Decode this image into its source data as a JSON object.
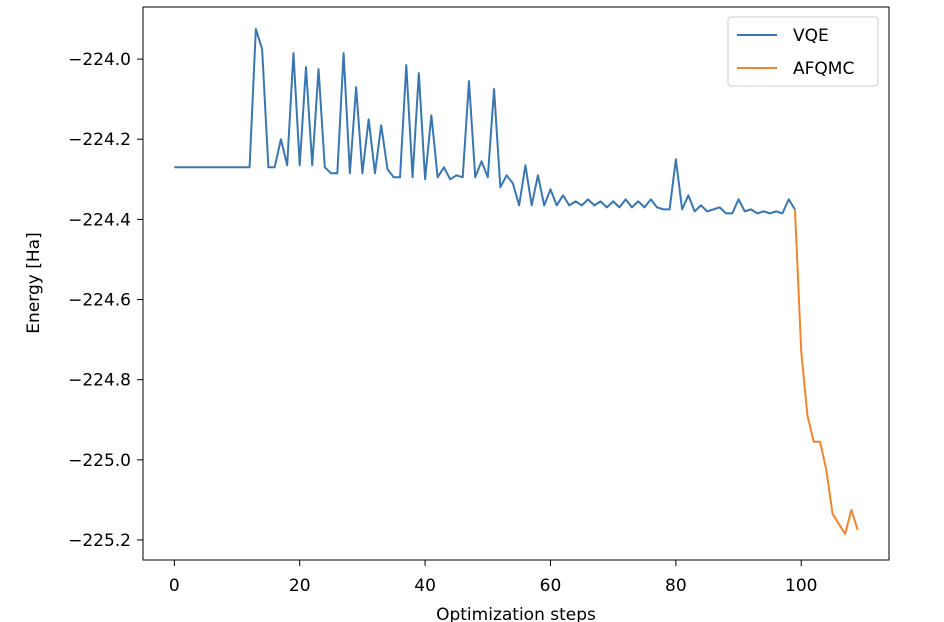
{
  "chart_data": {
    "type": "line",
    "xlabel": "Optimization steps",
    "ylabel": "Energy [Ha]",
    "xlim": [
      -5,
      114
    ],
    "ylim": [
      -225.25,
      -223.87
    ],
    "xticks": [
      0,
      20,
      40,
      60,
      80,
      100
    ],
    "xtick_labels": [
      "0",
      "20",
      "40",
      "60",
      "80",
      "100"
    ],
    "yticks": [
      -224.0,
      -224.2,
      -224.4,
      -224.6,
      -224.8,
      -225.0,
      -225.2
    ],
    "ytick_labels": [
      "−224.0",
      "−224.2",
      "−224.4",
      "−224.6",
      "−224.8",
      "−225.0",
      "−225.2"
    ],
    "grid": false,
    "legend_position": "top-right",
    "series": [
      {
        "name": "VQE",
        "color": "#3a76af",
        "x": [
          0,
          1,
          2,
          3,
          4,
          5,
          6,
          7,
          8,
          9,
          10,
          11,
          12,
          13,
          14,
          15,
          16,
          17,
          18,
          19,
          20,
          21,
          22,
          23,
          24,
          25,
          26,
          27,
          28,
          29,
          30,
          31,
          32,
          33,
          34,
          35,
          36,
          37,
          38,
          39,
          40,
          41,
          42,
          43,
          44,
          45,
          46,
          47,
          48,
          49,
          50,
          51,
          52,
          53,
          54,
          55,
          56,
          57,
          58,
          59,
          60,
          61,
          62,
          63,
          64,
          65,
          66,
          67,
          68,
          69,
          70,
          71,
          72,
          73,
          74,
          75,
          76,
          77,
          78,
          79,
          80,
          81,
          82,
          83,
          84,
          85,
          86,
          87,
          88,
          89,
          90,
          91,
          92,
          93,
          94,
          95,
          96,
          97,
          98,
          99
        ],
        "y": [
          -224.27,
          -224.27,
          -224.27,
          -224.27,
          -224.27,
          -224.27,
          -224.27,
          -224.27,
          -224.27,
          -224.27,
          -224.27,
          -224.27,
          -224.27,
          -223.925,
          -223.975,
          -224.27,
          -224.27,
          -224.2,
          -224.265,
          -223.985,
          -224.265,
          -224.02,
          -224.265,
          -224.025,
          -224.27,
          -224.285,
          -224.285,
          -223.985,
          -224.285,
          -224.07,
          -224.285,
          -224.15,
          -224.285,
          -224.165,
          -224.275,
          -224.295,
          -224.295,
          -224.015,
          -224.295,
          -224.035,
          -224.3,
          -224.14,
          -224.295,
          -224.27,
          -224.3,
          -224.29,
          -224.295,
          -224.055,
          -224.295,
          -224.255,
          -224.295,
          -224.075,
          -224.32,
          -224.29,
          -224.31,
          -224.365,
          -224.265,
          -224.365,
          -224.29,
          -224.365,
          -224.325,
          -224.365,
          -224.34,
          -224.365,
          -224.355,
          -224.365,
          -224.35,
          -224.365,
          -224.355,
          -224.37,
          -224.355,
          -224.37,
          -224.35,
          -224.37,
          -224.355,
          -224.37,
          -224.35,
          -224.37,
          -224.375,
          -224.375,
          -224.25,
          -224.375,
          -224.34,
          -224.38,
          -224.365,
          -224.38,
          -224.375,
          -224.37,
          -224.385,
          -224.385,
          -224.35,
          -224.38,
          -224.375,
          -224.385,
          -224.38,
          -224.385,
          -224.38,
          -224.385,
          -224.35,
          -224.375
        ]
      },
      {
        "name": "AFQMC",
        "color": "#f08530",
        "x": [
          99,
          100,
          101,
          102,
          103,
          104,
          105,
          106,
          107,
          108,
          109
        ],
        "y": [
          -224.375,
          -224.73,
          -224.89,
          -224.955,
          -224.955,
          -225.025,
          -225.135,
          -225.16,
          -225.185,
          -225.125,
          -225.175
        ]
      }
    ]
  }
}
